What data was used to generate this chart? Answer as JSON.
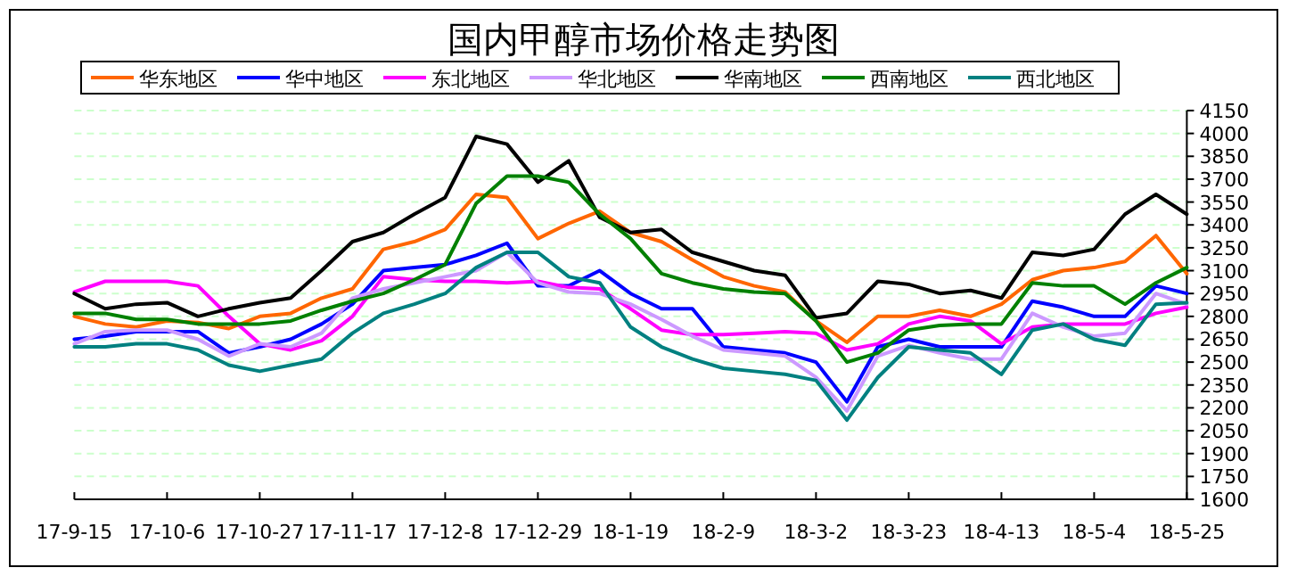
{
  "chart_data": {
    "type": "line",
    "title": "国内甲醇市场价格走势图",
    "categories": [
      "17-9-15",
      null,
      null,
      "17-10-6",
      null,
      null,
      "17-10-27",
      null,
      null,
      "17-11-17",
      null,
      null,
      "17-12-8",
      null,
      null,
      "17-12-29",
      null,
      null,
      "18-1-19",
      null,
      null,
      "18-2-9",
      null,
      null,
      "18-3-2",
      null,
      null,
      "18-3-23",
      null,
      null,
      "18-4-13",
      null,
      null,
      "18-5-4",
      null,
      null,
      "18-5-25"
    ],
    "series": [
      {
        "name": "华东地区",
        "color": "#ff6600",
        "values": [
          2800,
          2750,
          2730,
          2770,
          2760,
          2720,
          2800,
          2820,
          2920,
          2980,
          3240,
          3290,
          3370,
          3600,
          3580,
          3310,
          3410,
          3490,
          3350,
          3290,
          3170,
          3060,
          3000,
          2960,
          2770,
          2630,
          2800,
          2800,
          2840,
          2800,
          2880,
          3040,
          3100,
          3120,
          3160,
          3330,
          3080
        ]
      },
      {
        "name": "华中地区",
        "color": "#0000ff",
        "values": [
          2650,
          2670,
          2700,
          2700,
          2700,
          2560,
          2600,
          2650,
          2750,
          2880,
          3100,
          3120,
          3140,
          3200,
          3280,
          3000,
          3000,
          3100,
          2950,
          2850,
          2850,
          2600,
          2580,
          2560,
          2500,
          2240,
          2600,
          2650,
          2600,
          2600,
          2600,
          2900,
          2860,
          2800,
          2800,
          3000,
          2950
        ]
      },
      {
        "name": "东北地区",
        "color": "#ff00ff",
        "values": [
          2960,
          3030,
          3030,
          3030,
          3000,
          2800,
          2620,
          2580,
          2640,
          2800,
          3060,
          3040,
          3030,
          3030,
          3020,
          3030,
          2990,
          2980,
          2850,
          2710,
          2680,
          2680,
          2690,
          2700,
          2690,
          2580,
          2620,
          2750,
          2800,
          2770,
          2620,
          2730,
          2750,
          2750,
          2750,
          2820,
          2860
        ]
      },
      {
        "name": "华北地区",
        "color": "#cc99ff",
        "values": [
          2620,
          2700,
          2710,
          2710,
          2650,
          2540,
          2620,
          2600,
          2690,
          2920,
          2980,
          3020,
          3060,
          3100,
          3220,
          3020,
          2960,
          2950,
          2880,
          2780,
          2670,
          2580,
          2560,
          2540,
          2400,
          2180,
          2540,
          2610,
          2560,
          2520,
          2520,
          2820,
          2730,
          2670,
          2690,
          2950,
          2880
        ]
      },
      {
        "name": "华南地区",
        "color": "#000000",
        "values": [
          2950,
          2850,
          2880,
          2890,
          2800,
          2850,
          2890,
          2920,
          3100,
          3290,
          3350,
          3470,
          3580,
          3980,
          3930,
          3680,
          3820,
          3450,
          3350,
          3370,
          3220,
          3160,
          3100,
          3070,
          2790,
          2820,
          3030,
          3010,
          2950,
          2970,
          2920,
          3220,
          3200,
          3240,
          3470,
          3600,
          3470
        ]
      },
      {
        "name": "西南地区",
        "color": "#008000",
        "values": [
          2820,
          2820,
          2780,
          2780,
          2750,
          2750,
          2750,
          2770,
          2840,
          2900,
          2950,
          3040,
          3140,
          3540,
          3720,
          3720,
          3680,
          3470,
          3310,
          3080,
          3020,
          2980,
          2960,
          2950,
          2770,
          2500,
          2560,
          2710,
          2740,
          2750,
          2750,
          3020,
          3000,
          3000,
          2880,
          3020,
          3120
        ]
      },
      {
        "name": "西北地区",
        "color": "#008080",
        "values": [
          2600,
          2600,
          2620,
          2620,
          2580,
          2480,
          2440,
          2480,
          2520,
          2690,
          2820,
          2880,
          2950,
          3120,
          3220,
          3220,
          3060,
          3020,
          2730,
          2600,
          2520,
          2460,
          2440,
          2420,
          2380,
          2120,
          2400,
          2600,
          2580,
          2560,
          2420,
          2710,
          2750,
          2650,
          2610,
          2880,
          2890
        ]
      }
    ],
    "ylim": [
      1600,
      4150
    ],
    "yticks": [
      1600,
      1750,
      1900,
      2050,
      2200,
      2350,
      2500,
      2650,
      2800,
      2950,
      3100,
      3250,
      3400,
      3550,
      3700,
      3850,
      4000,
      4150
    ],
    "grid": "y",
    "legend": "top",
    "marker": "none",
    "line_style": "solid"
  }
}
